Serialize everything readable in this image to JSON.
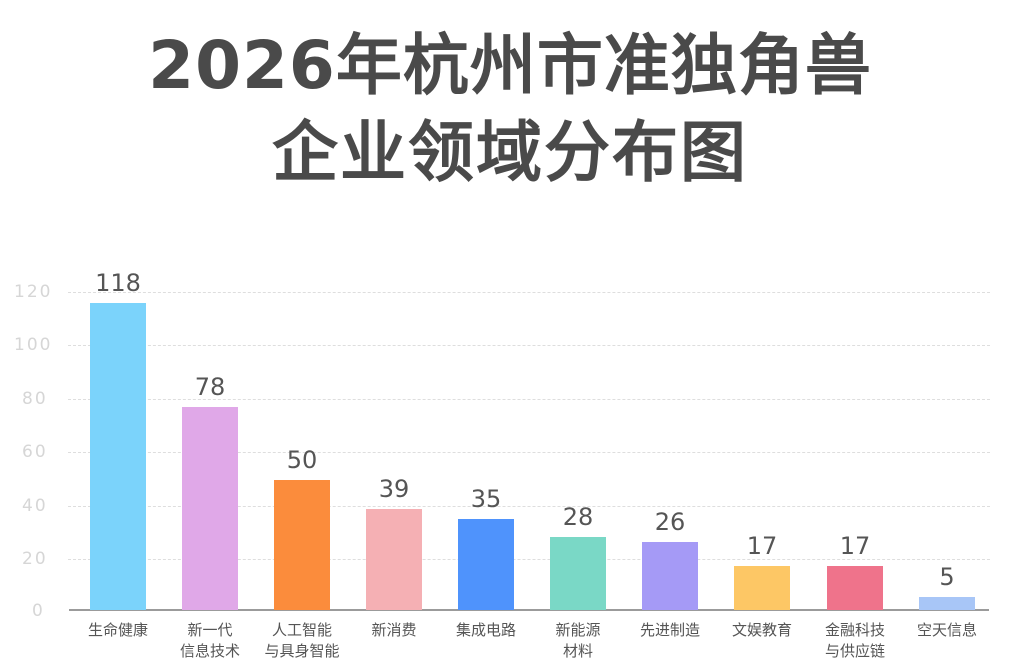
{
  "title": {
    "line1": "2026年杭州市准独角兽",
    "line2": "企业领域分布图"
  },
  "chart_data": {
    "type": "bar",
    "title": "2026年杭州市准独角兽企业领域分布图",
    "xlabel": "",
    "ylabel": "",
    "ylim": [
      0,
      120
    ],
    "yticks": [
      "0",
      "20",
      "40",
      "60",
      "80",
      "100",
      "120"
    ],
    "grid": true,
    "legend": null,
    "categories": [
      "生命健康",
      "新一代\n信息技术",
      "人工智能\n与具身智能",
      "新消费",
      "集成电路",
      "新能源\n材料",
      "先进制造",
      "文娱教育",
      "金融科技\n与供应链",
      "空天信息"
    ],
    "values": [
      118,
      78,
      50,
      39,
      35,
      28,
      26,
      17,
      17,
      5
    ],
    "colors": [
      "#7bd3fb",
      "#e0a8e8",
      "#fb8c3c",
      "#f5b0b4",
      "#4f93fc",
      "#7ad8c6",
      "#a59af6",
      "#fdc765",
      "#ef738b",
      "#a8c6f7"
    ]
  }
}
